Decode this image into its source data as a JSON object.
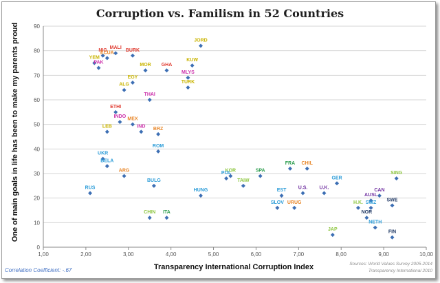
{
  "chart_data": {
    "type": "scatter",
    "title": "Corruption vs. Familism in 52 Countries",
    "xlabel": "Transparency International Corruption Index",
    "ylabel": "One of main goals in life has been to make my parents proud",
    "xlim": [
      1,
      10
    ],
    "ylim": [
      0,
      90
    ],
    "x_ticks": [
      "1,00",
      "2,00",
      "3,00",
      "4,00",
      "5,00",
      "6,00",
      "7,00",
      "8,00",
      "9,00",
      "10,00"
    ],
    "y_ticks": [
      "0",
      "10",
      "20",
      "30",
      "40",
      "50",
      "60",
      "70",
      "80",
      "90"
    ],
    "grid": "horizontal",
    "marker_color": "#3d6fb4",
    "points": [
      {
        "label": "JORD",
        "x": 4.7,
        "y": 82,
        "color": "#c9b400"
      },
      {
        "label": "NIG",
        "x": 2.4,
        "y": 78,
        "color": "#e03c31"
      },
      {
        "label": "MALI",
        "x": 2.7,
        "y": 79,
        "color": "#e03c31"
      },
      {
        "label": "BURK",
        "x": 3.1,
        "y": 78,
        "color": "#e03c31"
      },
      {
        "label": "YEM",
        "x": 2.2,
        "y": 75,
        "color": "#c9b400"
      },
      {
        "label": "ECUA",
        "x": 2.5,
        "y": 77,
        "color": "#e8872a"
      },
      {
        "label": "PAK",
        "x": 2.3,
        "y": 73,
        "color": "#cc2faa"
      },
      {
        "label": "MOR",
        "x": 3.4,
        "y": 72,
        "color": "#c9b400"
      },
      {
        "label": "GHA",
        "x": 3.9,
        "y": 72,
        "color": "#e03c31"
      },
      {
        "label": "KUW",
        "x": 4.5,
        "y": 74,
        "color": "#c9b400"
      },
      {
        "label": "MLYS",
        "x": 4.4,
        "y": 69,
        "color": "#cc2faa"
      },
      {
        "label": "TURK",
        "x": 4.4,
        "y": 65,
        "color": "#c9b400"
      },
      {
        "label": "EGY",
        "x": 3.1,
        "y": 67,
        "color": "#c9b400"
      },
      {
        "label": "ALG",
        "x": 2.9,
        "y": 64,
        "color": "#c9b400"
      },
      {
        "label": "THAI",
        "x": 3.5,
        "y": 60,
        "color": "#cc2faa"
      },
      {
        "label": "ETHI",
        "x": 2.7,
        "y": 55,
        "color": "#e03c31"
      },
      {
        "label": "INDO",
        "x": 2.8,
        "y": 51,
        "color": "#cc2faa"
      },
      {
        "label": "MEX",
        "x": 3.1,
        "y": 50,
        "color": "#e8872a"
      },
      {
        "label": "IND",
        "x": 3.3,
        "y": 47,
        "color": "#cc2faa"
      },
      {
        "label": "LEB",
        "x": 2.5,
        "y": 47,
        "color": "#c9b400"
      },
      {
        "label": "BRZ",
        "x": 3.7,
        "y": 46,
        "color": "#e8872a"
      },
      {
        "label": "ROM",
        "x": 3.7,
        "y": 39,
        "color": "#2b9cd8"
      },
      {
        "label": "UKR",
        "x": 2.4,
        "y": 36,
        "color": "#2b9cd8"
      },
      {
        "label": "BELA",
        "x": 2.5,
        "y": 33,
        "color": "#2b9cd8"
      },
      {
        "label": "ARG",
        "x": 2.9,
        "y": 29,
        "color": "#e8872a"
      },
      {
        "label": "BULG",
        "x": 3.6,
        "y": 25,
        "color": "#2b9cd8"
      },
      {
        "label": "RUS",
        "x": 2.1,
        "y": 22,
        "color": "#2b9cd8"
      },
      {
        "label": "KOR",
        "x": 5.4,
        "y": 29,
        "color": "#8dc63f"
      },
      {
        "label": "POL",
        "x": 5.3,
        "y": 28,
        "color": "#2b9cd8"
      },
      {
        "label": "SPA",
        "x": 6.1,
        "y": 29,
        "color": "#2e9e4f"
      },
      {
        "label": "TAIW",
        "x": 5.7,
        "y": 25,
        "color": "#8dc63f"
      },
      {
        "label": "HUNG",
        "x": 4.7,
        "y": 21,
        "color": "#2b9cd8"
      },
      {
        "label": "FRA",
        "x": 6.8,
        "y": 32,
        "color": "#2e9e4f"
      },
      {
        "label": "CHIL",
        "x": 7.2,
        "y": 32,
        "color": "#e8872a"
      },
      {
        "label": "GER",
        "x": 7.9,
        "y": 26,
        "color": "#2b9cd8"
      },
      {
        "label": "SING",
        "x": 9.3,
        "y": 28,
        "color": "#8dc63f"
      },
      {
        "label": "EST",
        "x": 6.6,
        "y": 21,
        "color": "#2b9cd8"
      },
      {
        "label": "U.S.",
        "x": 7.1,
        "y": 22,
        "color": "#7030a0"
      },
      {
        "label": "U.K.",
        "x": 7.6,
        "y": 22,
        "color": "#7030a0"
      },
      {
        "label": "SLOV",
        "x": 6.5,
        "y": 16,
        "color": "#2b9cd8"
      },
      {
        "label": "URUG",
        "x": 6.9,
        "y": 16,
        "color": "#e8872a"
      },
      {
        "label": "CHIN",
        "x": 3.5,
        "y": 12,
        "color": "#8dc63f"
      },
      {
        "label": "ITA",
        "x": 3.9,
        "y": 12,
        "color": "#2e9e4f"
      },
      {
        "label": "CAN",
        "x": 8.9,
        "y": 21,
        "color": "#7030a0"
      },
      {
        "label": "AUSL",
        "x": 8.7,
        "y": 19,
        "color": "#7030a0"
      },
      {
        "label": "H.K.",
        "x": 8.4,
        "y": 16,
        "color": "#8dc63f"
      },
      {
        "label": "SWZ",
        "x": 8.7,
        "y": 16,
        "color": "#2b9cd8"
      },
      {
        "label": "SWE",
        "x": 9.2,
        "y": 17,
        "color": "#1f3864"
      },
      {
        "label": "NOR",
        "x": 8.6,
        "y": 12,
        "color": "#1f3864"
      },
      {
        "label": "NETH",
        "x": 8.8,
        "y": 8,
        "color": "#2b9cd8"
      },
      {
        "label": "FIN",
        "x": 9.2,
        "y": 4,
        "color": "#1f3864"
      },
      {
        "label": "JAP",
        "x": 7.8,
        "y": 5,
        "color": "#8dc63f"
      }
    ]
  },
  "footnotes": {
    "correlation": "Correlation Coefficient: -.67",
    "source_line1": "Sources: World Values Survey 2005-2014",
    "source_line2": "Transparency International 2010"
  }
}
